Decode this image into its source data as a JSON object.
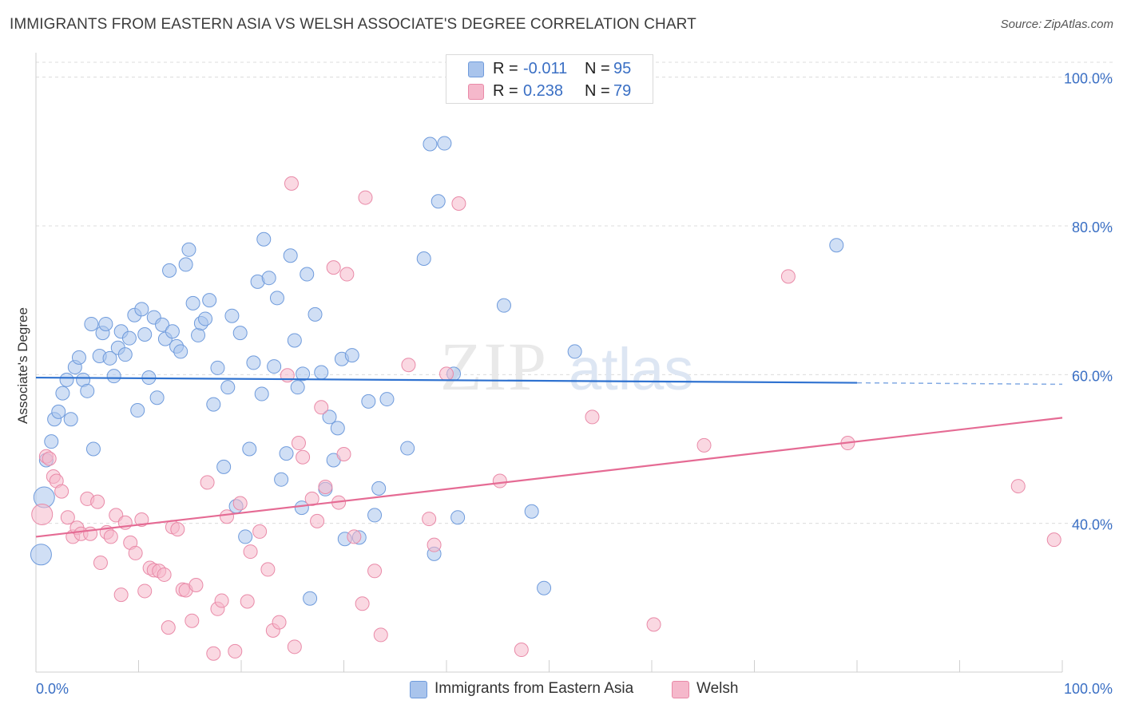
{
  "header": {
    "title": "IMMIGRANTS FROM EASTERN ASIA VS WELSH ASSOCIATE'S DEGREE CORRELATION CHART",
    "source_prefix": "Source:",
    "source_name": "ZipAtlas.com"
  },
  "watermark": {
    "zip": "ZIP",
    "atlas": "atlas"
  },
  "legend_top": [
    {
      "r_label": "R =",
      "r_value": "-0.011",
      "n_label": "N =",
      "n_value": "95",
      "color": "#a9c4ec"
    },
    {
      "r_label": "R =",
      "r_value": "0.238",
      "n_label": "N =",
      "n_value": "79",
      "color": "#f5b8cb"
    }
  ],
  "legend_bottom": [
    {
      "label": "Immigrants from Eastern Asia",
      "color": "#a9c4ec"
    },
    {
      "label": "Welsh",
      "color": "#f5b8cb"
    }
  ],
  "chart_data": {
    "type": "scatter",
    "title": "IMMIGRANTS FROM EASTERN ASIA VS WELSH ASSOCIATE'S DEGREE CORRELATION CHART",
    "xlabel": "",
    "ylabel": "Associate's Degree",
    "xlim": [
      0,
      100
    ],
    "ylim": [
      20,
      102
    ],
    "x_tick_labels": [
      "0.0%",
      "100.0%"
    ],
    "y_ticks": [
      40,
      60,
      80,
      100
    ],
    "y_tick_labels": [
      "40.0%",
      "60.0%",
      "80.0%",
      "100.0%"
    ],
    "grid": true,
    "legend_position": "top-center",
    "series": [
      {
        "name": "Immigrants from Eastern Asia",
        "color": "#a9c4ec",
        "stroke": "#6f9bdc",
        "trend_color": "#2f72d0",
        "r": -0.011,
        "n": 95,
        "trend": {
          "x": [
            0,
            80
          ],
          "y": [
            59.6,
            58.9
          ],
          "dashed_to": [
            100,
            58.7
          ]
        },
        "points": [
          {
            "x": 0.5,
            "y": 35.8,
            "big": true
          },
          {
            "x": 0.8,
            "y": 43.5,
            "big": true
          },
          {
            "x": 1.0,
            "y": 48.5
          },
          {
            "x": 1.5,
            "y": 51.0
          },
          {
            "x": 1.8,
            "y": 54.0
          },
          {
            "x": 2.2,
            "y": 55.0
          },
          {
            "x": 2.6,
            "y": 57.5
          },
          {
            "x": 3.0,
            "y": 59.3
          },
          {
            "x": 3.4,
            "y": 54.0
          },
          {
            "x": 3.8,
            "y": 61.0
          },
          {
            "x": 4.2,
            "y": 62.3
          },
          {
            "x": 4.6,
            "y": 59.3
          },
          {
            "x": 5.0,
            "y": 57.8
          },
          {
            "x": 5.4,
            "y": 66.8
          },
          {
            "x": 5.6,
            "y": 50.0
          },
          {
            "x": 6.2,
            "y": 62.5
          },
          {
            "x": 6.5,
            "y": 65.6
          },
          {
            "x": 6.8,
            "y": 66.8
          },
          {
            "x": 7.2,
            "y": 62.2
          },
          {
            "x": 7.6,
            "y": 59.8
          },
          {
            "x": 8.0,
            "y": 63.6
          },
          {
            "x": 8.3,
            "y": 65.8
          },
          {
            "x": 8.7,
            "y": 62.7
          },
          {
            "x": 9.1,
            "y": 64.9
          },
          {
            "x": 9.6,
            "y": 68.0
          },
          {
            "x": 9.9,
            "y": 55.2
          },
          {
            "x": 10.3,
            "y": 68.8
          },
          {
            "x": 10.6,
            "y": 65.4
          },
          {
            "x": 11.0,
            "y": 59.6
          },
          {
            "x": 11.5,
            "y": 67.7
          },
          {
            "x": 11.8,
            "y": 56.9
          },
          {
            "x": 12.3,
            "y": 66.7
          },
          {
            "x": 12.6,
            "y": 64.8
          },
          {
            "x": 13.0,
            "y": 74.0
          },
          {
            "x": 13.3,
            "y": 65.8
          },
          {
            "x": 13.7,
            "y": 63.8
          },
          {
            "x": 14.1,
            "y": 63.1
          },
          {
            "x": 14.6,
            "y": 74.8
          },
          {
            "x": 14.9,
            "y": 76.8
          },
          {
            "x": 15.3,
            "y": 69.6
          },
          {
            "x": 15.8,
            "y": 65.3
          },
          {
            "x": 16.1,
            "y": 66.9
          },
          {
            "x": 16.5,
            "y": 67.5
          },
          {
            "x": 16.9,
            "y": 70.0
          },
          {
            "x": 17.3,
            "y": 56.0
          },
          {
            "x": 17.7,
            "y": 60.9
          },
          {
            "x": 18.3,
            "y": 47.6
          },
          {
            "x": 18.7,
            "y": 58.3
          },
          {
            "x": 19.1,
            "y": 67.9
          },
          {
            "x": 19.5,
            "y": 42.3
          },
          {
            "x": 19.9,
            "y": 65.6
          },
          {
            "x": 20.4,
            "y": 38.2
          },
          {
            "x": 20.8,
            "y": 50.0
          },
          {
            "x": 21.2,
            "y": 61.6
          },
          {
            "x": 21.6,
            "y": 72.5
          },
          {
            "x": 22.0,
            "y": 57.4
          },
          {
            "x": 22.2,
            "y": 78.2
          },
          {
            "x": 22.7,
            "y": 73.0
          },
          {
            "x": 23.2,
            "y": 61.1
          },
          {
            "x": 23.5,
            "y": 70.3
          },
          {
            "x": 23.9,
            "y": 45.9
          },
          {
            "x": 24.4,
            "y": 49.4
          },
          {
            "x": 24.8,
            "y": 76.0
          },
          {
            "x": 25.2,
            "y": 64.6
          },
          {
            "x": 25.5,
            "y": 58.3
          },
          {
            "x": 25.9,
            "y": 42.1
          },
          {
            "x": 26.0,
            "y": 60.1
          },
          {
            "x": 26.4,
            "y": 73.5
          },
          {
            "x": 26.7,
            "y": 29.9
          },
          {
            "x": 27.2,
            "y": 68.1
          },
          {
            "x": 27.8,
            "y": 60.3
          },
          {
            "x": 28.2,
            "y": 44.6
          },
          {
            "x": 28.6,
            "y": 54.3
          },
          {
            "x": 29.0,
            "y": 48.5
          },
          {
            "x": 29.4,
            "y": 52.8
          },
          {
            "x": 29.8,
            "y": 62.1
          },
          {
            "x": 30.1,
            "y": 37.9
          },
          {
            "x": 30.8,
            "y": 62.6
          },
          {
            "x": 31.5,
            "y": 38.1
          },
          {
            "x": 32.4,
            "y": 56.4
          },
          {
            "x": 33.0,
            "y": 41.1
          },
          {
            "x": 33.4,
            "y": 44.7
          },
          {
            "x": 34.2,
            "y": 56.7
          },
          {
            "x": 36.2,
            "y": 50.1
          },
          {
            "x": 37.8,
            "y": 75.6
          },
          {
            "x": 38.4,
            "y": 91.0
          },
          {
            "x": 38.8,
            "y": 35.9
          },
          {
            "x": 39.2,
            "y": 83.3
          },
          {
            "x": 39.8,
            "y": 91.1
          },
          {
            "x": 40.7,
            "y": 60.1
          },
          {
            "x": 41.1,
            "y": 40.8
          },
          {
            "x": 45.6,
            "y": 69.3
          },
          {
            "x": 48.3,
            "y": 41.6
          },
          {
            "x": 49.5,
            "y": 31.3
          },
          {
            "x": 52.5,
            "y": 63.1
          },
          {
            "x": 78.0,
            "y": 77.4
          }
        ]
      },
      {
        "name": "Welsh",
        "color": "#f5b8cb",
        "stroke": "#e98aa8",
        "trend_color": "#e56b94",
        "r": 0.238,
        "n": 79,
        "trend": {
          "x": [
            0,
            100
          ],
          "y": [
            38.2,
            54.2
          ]
        },
        "points": [
          {
            "x": 0.6,
            "y": 41.2,
            "big": true
          },
          {
            "x": 1.0,
            "y": 49.0
          },
          {
            "x": 1.3,
            "y": 48.7
          },
          {
            "x": 1.7,
            "y": 46.3
          },
          {
            "x": 2.0,
            "y": 45.7
          },
          {
            "x": 2.5,
            "y": 44.3
          },
          {
            "x": 3.1,
            "y": 40.8
          },
          {
            "x": 3.6,
            "y": 38.2
          },
          {
            "x": 4.0,
            "y": 39.4
          },
          {
            "x": 4.4,
            "y": 38.6
          },
          {
            "x": 5.0,
            "y": 43.3
          },
          {
            "x": 5.3,
            "y": 38.6
          },
          {
            "x": 6.0,
            "y": 42.9
          },
          {
            "x": 6.3,
            "y": 34.7
          },
          {
            "x": 6.9,
            "y": 38.8
          },
          {
            "x": 7.3,
            "y": 38.2
          },
          {
            "x": 7.8,
            "y": 41.1
          },
          {
            "x": 8.3,
            "y": 30.4
          },
          {
            "x": 8.7,
            "y": 40.1
          },
          {
            "x": 9.2,
            "y": 37.4
          },
          {
            "x": 9.7,
            "y": 36.0
          },
          {
            "x": 10.3,
            "y": 40.5
          },
          {
            "x": 10.6,
            "y": 30.9
          },
          {
            "x": 11.1,
            "y": 34.0
          },
          {
            "x": 11.5,
            "y": 33.7
          },
          {
            "x": 12.0,
            "y": 33.6
          },
          {
            "x": 12.5,
            "y": 33.1
          },
          {
            "x": 12.9,
            "y": 26.0
          },
          {
            "x": 13.3,
            "y": 39.5
          },
          {
            "x": 13.8,
            "y": 39.2
          },
          {
            "x": 14.3,
            "y": 31.1
          },
          {
            "x": 14.6,
            "y": 31.0
          },
          {
            "x": 15.2,
            "y": 26.9
          },
          {
            "x": 15.6,
            "y": 31.7
          },
          {
            "x": 16.7,
            "y": 45.5
          },
          {
            "x": 17.3,
            "y": 22.5
          },
          {
            "x": 17.7,
            "y": 28.5
          },
          {
            "x": 18.1,
            "y": 29.6
          },
          {
            "x": 18.6,
            "y": 40.9
          },
          {
            "x": 19.4,
            "y": 22.8
          },
          {
            "x": 19.9,
            "y": 42.7
          },
          {
            "x": 20.6,
            "y": 29.5
          },
          {
            "x": 20.9,
            "y": 36.2
          },
          {
            "x": 21.8,
            "y": 38.9
          },
          {
            "x": 22.6,
            "y": 33.8
          },
          {
            "x": 23.1,
            "y": 25.6
          },
          {
            "x": 23.7,
            "y": 26.7
          },
          {
            "x": 24.5,
            "y": 59.9
          },
          {
            "x": 24.9,
            "y": 85.7
          },
          {
            "x": 25.2,
            "y": 23.4
          },
          {
            "x": 25.6,
            "y": 50.8
          },
          {
            "x": 26.0,
            "y": 48.9
          },
          {
            "x": 26.9,
            "y": 43.3
          },
          {
            "x": 27.4,
            "y": 40.3
          },
          {
            "x": 27.8,
            "y": 55.6
          },
          {
            "x": 28.2,
            "y": 44.9
          },
          {
            "x": 29.0,
            "y": 74.4
          },
          {
            "x": 29.5,
            "y": 42.8
          },
          {
            "x": 30.0,
            "y": 49.3
          },
          {
            "x": 30.3,
            "y": 73.5
          },
          {
            "x": 31.0,
            "y": 38.2
          },
          {
            "x": 31.8,
            "y": 29.2
          },
          {
            "x": 32.1,
            "y": 83.8
          },
          {
            "x": 33.0,
            "y": 33.6
          },
          {
            "x": 33.6,
            "y": 25.0
          },
          {
            "x": 36.3,
            "y": 61.3
          },
          {
            "x": 38.3,
            "y": 40.6
          },
          {
            "x": 38.8,
            "y": 37.1
          },
          {
            "x": 40.0,
            "y": 60.1
          },
          {
            "x": 41.2,
            "y": 83.0
          },
          {
            "x": 45.2,
            "y": 45.7
          },
          {
            "x": 47.3,
            "y": 23.0
          },
          {
            "x": 54.2,
            "y": 54.3
          },
          {
            "x": 60.2,
            "y": 26.4
          },
          {
            "x": 65.1,
            "y": 50.5
          },
          {
            "x": 73.3,
            "y": 73.2
          },
          {
            "x": 79.1,
            "y": 50.8
          },
          {
            "x": 95.7,
            "y": 45.0
          },
          {
            "x": 99.2,
            "y": 37.8
          }
        ]
      }
    ]
  }
}
